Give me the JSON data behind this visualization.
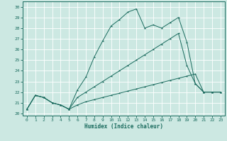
{
  "xlabel": "Humidex (Indice chaleur)",
  "xlim": [
    -0.5,
    23.5
  ],
  "ylim": [
    19.8,
    30.5
  ],
  "xticks": [
    0,
    1,
    2,
    3,
    4,
    5,
    6,
    7,
    8,
    9,
    10,
    11,
    12,
    13,
    14,
    15,
    16,
    17,
    18,
    19,
    20,
    21,
    22,
    23
  ],
  "yticks": [
    20,
    21,
    22,
    23,
    24,
    25,
    26,
    27,
    28,
    29,
    30
  ],
  "bg_color": "#cce8e2",
  "line_color": "#1a6b5e",
  "grid_color": "#ffffff",
  "line1_x": [
    0,
    1,
    2,
    3,
    4,
    5,
    6,
    7,
    8,
    9,
    10,
    11,
    12,
    13,
    14,
    15,
    16,
    17,
    18,
    19,
    20,
    21,
    22,
    23
  ],
  "line1_y": [
    20.4,
    21.7,
    21.5,
    21.0,
    20.8,
    20.4,
    20.8,
    21.1,
    21.3,
    21.5,
    21.7,
    21.9,
    22.1,
    22.3,
    22.5,
    22.7,
    22.9,
    23.1,
    23.3,
    23.5,
    23.7,
    22.0,
    22.0,
    22.0
  ],
  "line2_x": [
    0,
    1,
    2,
    3,
    4,
    5,
    6,
    7,
    8,
    9,
    10,
    11,
    12,
    13,
    14,
    15,
    16,
    17,
    18,
    19,
    20,
    21,
    22,
    23
  ],
  "line2_y": [
    20.4,
    21.7,
    21.5,
    21.0,
    20.8,
    20.4,
    22.2,
    23.4,
    25.3,
    26.8,
    28.2,
    28.8,
    29.5,
    29.8,
    28.0,
    28.3,
    28.0,
    28.5,
    29.0,
    26.7,
    22.8,
    22.0,
    22.0,
    22.0
  ],
  "line3_x": [
    0,
    1,
    2,
    3,
    4,
    5,
    6,
    7,
    8,
    9,
    10,
    11,
    12,
    13,
    14,
    15,
    16,
    17,
    18,
    19,
    20,
    21,
    22,
    23
  ],
  "line3_y": [
    20.4,
    21.7,
    21.5,
    21.0,
    20.8,
    20.4,
    21.5,
    22.0,
    22.5,
    23.0,
    23.5,
    24.0,
    24.5,
    25.0,
    25.5,
    26.0,
    26.5,
    27.0,
    27.5,
    24.5,
    22.8,
    22.0,
    22.0,
    22.0
  ]
}
